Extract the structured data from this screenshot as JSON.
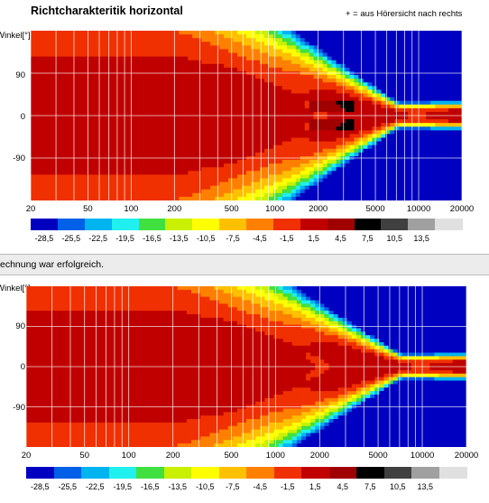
{
  "top_panel": {
    "title": "Richtcharakteritik horizontal",
    "note": "+ = aus Hörersicht nach rechts",
    "ylabel": "Winkel[°]"
  },
  "status": {
    "message": "echnung war erfolgreich."
  },
  "bottom_panel": {
    "ylabel": "Winkel[°]"
  },
  "legend": {
    "colors": [
      "#0000c0",
      "#0060e8",
      "#00b4f0",
      "#20f0f0",
      "#40e040",
      "#c8f000",
      "#ffff00",
      "#ffc000",
      "#ff8000",
      "#f03000",
      "#c00000",
      "#a00000",
      "#000000",
      "#404040",
      "#a0a0a0",
      "#e0e0e0"
    ],
    "ticks": [
      "-28,5",
      "-25,5",
      "-22,5",
      "-19,5",
      "-16,5",
      "-13,5",
      "-10,5",
      "-7,5",
      "-4,5",
      "-1,5",
      "1,5",
      "4,5",
      "7,5",
      "10,5",
      "13,5"
    ]
  },
  "chart_data": [
    {
      "type": "heatmap",
      "title": "Richtcharakteritik horizontal",
      "annotation": "+ = aus Hörersicht nach rechts",
      "xlabel": "",
      "ylabel": "Winkel[°]",
      "x_scale": "log",
      "xlim": [
        20,
        20000
      ],
      "x_ticks": [
        "20",
        "50",
        "100",
        "200",
        "500",
        "1000",
        "2000",
        "5000",
        "10000",
        "20000"
      ],
      "y_ticks": [
        "90",
        "0",
        "-90"
      ],
      "ylim": [
        -180,
        180
      ],
      "colorbar_ticks": [
        "-28,5",
        "-25,5",
        "-22,5",
        "-19,5",
        "-16,5",
        "-13,5",
        "-10,5",
        "-7,5",
        "-4,5",
        "-1,5",
        "1,5",
        "4,5",
        "7,5",
        "10,5",
        "13,5"
      ],
      "grid": true,
      "features": {
        "hot_spots_near_on_axis_hz": [
          2000,
          3500
        ],
        "rolloff_off_axis_starts_hz": 300
      }
    },
    {
      "type": "heatmap",
      "xlabel": "",
      "ylabel": "Winkel[°]",
      "x_scale": "log",
      "xlim": [
        20,
        20000
      ],
      "x_ticks": [
        "20",
        "50",
        "100",
        "200",
        "500",
        "1000",
        "2000",
        "5000",
        "10000",
        "20000"
      ],
      "y_ticks": [
        "90",
        "0",
        "-90"
      ],
      "ylim": [
        -180,
        180
      ],
      "colorbar_ticks": [
        "-28,5",
        "-25,5",
        "-22,5",
        "-19,5",
        "-16,5",
        "-13,5",
        "-10,5",
        "-7,5",
        "-4,5",
        "-1,5",
        "1,5",
        "4,5",
        "7,5",
        "10,5",
        "13,5"
      ],
      "grid": true
    }
  ]
}
